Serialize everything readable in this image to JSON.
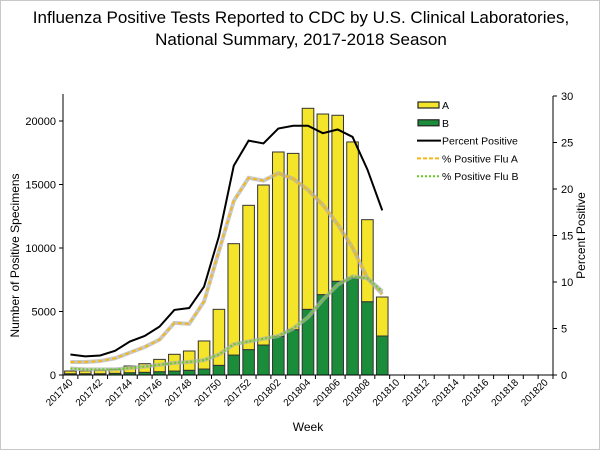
{
  "chart_data": {
    "type": "bar",
    "title_lines": [
      "Influenza Positive Tests Reported to CDC by U.S. Clinical Laboratories,",
      "National Summary, 2017-2018 Season"
    ],
    "xlabel": "Week",
    "ylabel": "Number of Positive Specimens",
    "y2label": "Percent Positive",
    "ylim": [
      0,
      22000
    ],
    "y2lim": [
      0,
      30
    ],
    "yticks": [
      0,
      5000,
      10000,
      15000,
      20000
    ],
    "y2ticks": [
      0,
      5,
      10,
      15,
      20,
      25,
      30
    ],
    "categories": [
      "201740",
      "201741",
      "201742",
      "201743",
      "201744",
      "201745",
      "201746",
      "201747",
      "201748",
      "201749",
      "201750",
      "201751",
      "201752",
      "201801",
      "201802",
      "201803",
      "201804",
      "201805",
      "201806",
      "201807",
      "201808",
      "201809",
      "201810",
      "201811",
      "201812",
      "201813",
      "201814",
      "201815",
      "201816",
      "201817",
      "201818",
      "201819",
      "201820"
    ],
    "tick_labels": [
      "201740",
      "201742",
      "201744",
      "201746",
      "201748",
      "201750",
      "201752",
      "201802",
      "201804",
      "201806",
      "201808",
      "201810",
      "201812",
      "201814",
      "201816",
      "201818",
      "201820"
    ],
    "stacked_series": [
      {
        "name": "A",
        "color": "#f5e52a",
        "values": [
          215,
          215,
          270,
          320,
          530,
          680,
          970,
          1320,
          1520,
          2210,
          4410,
          8770,
          11360,
          12600,
          14520,
          13880,
          15830,
          14220,
          13070,
          10710,
          6460,
          3070
        ]
      },
      {
        "name": "B",
        "color": "#1b8c3a",
        "values": [
          100,
          100,
          100,
          130,
          180,
          210,
          260,
          310,
          370,
          470,
          760,
          1570,
          2000,
          2360,
          3040,
          3570,
          5170,
          6330,
          7380,
          7640,
          5770,
          3070
        ]
      }
    ],
    "line_series": [
      {
        "name": "Percent Positive",
        "color": "#000000",
        "style": "solid",
        "values": [
          2.2,
          2.0,
          2.1,
          2.6,
          3.6,
          4.2,
          5.2,
          7.0,
          7.2,
          9.5,
          14.9,
          22.5,
          25.2,
          24.9,
          26.5,
          26.8,
          26.8,
          26.0,
          26.4,
          25.6,
          22.1,
          17.7
        ]
      },
      {
        "name": "% Positive Flu A",
        "color": "#f2b818",
        "style": "dashed",
        "values": [
          1.4,
          1.4,
          1.5,
          1.8,
          2.4,
          3.0,
          3.8,
          5.6,
          5.5,
          7.9,
          13.3,
          18.7,
          21.2,
          20.9,
          21.7,
          21.1,
          19.9,
          18.3,
          16.2,
          13.7,
          10.4,
          8.7
        ]
      },
      {
        "name": "% Positive Flu B",
        "color": "#66cc22",
        "style": "dotted",
        "values": [
          0.7,
          0.6,
          0.6,
          0.6,
          0.75,
          0.9,
          1.1,
          1.3,
          1.4,
          1.6,
          2.2,
          3.3,
          3.6,
          3.9,
          4.2,
          5.0,
          6.2,
          8.1,
          9.7,
          10.6,
          10.4,
          9.0
        ]
      }
    ],
    "legend_placement": "top-right",
    "grid": false
  }
}
